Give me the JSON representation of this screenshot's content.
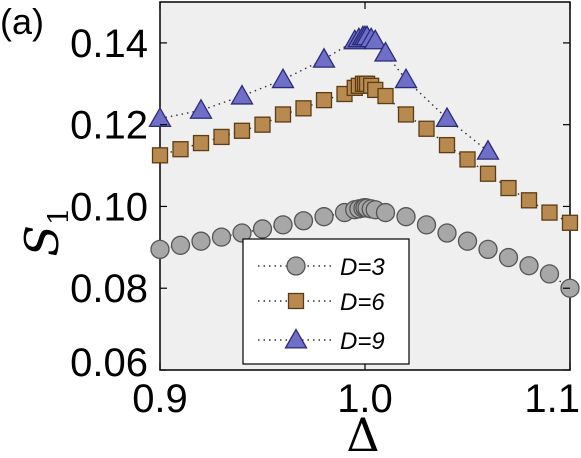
{
  "chart_data": {
    "type": "scatter",
    "panel_label": "(a)",
    "xlabel": "Δ",
    "ylabel": "S",
    "ylabel_sub": "1",
    "xlim": [
      0.9,
      1.1
    ],
    "ylim": [
      0.06,
      0.15
    ],
    "xticks": [
      0.9,
      1.0,
      1.1
    ],
    "xtick_labels": [
      "0.9",
      "1.0",
      "1.1"
    ],
    "yticks": [
      0.06,
      0.08,
      0.1,
      0.12,
      0.14
    ],
    "ytick_labels": [
      "0.06",
      "0.08",
      "0.10",
      "0.12",
      "0.14"
    ],
    "grid": false,
    "legend_position": "bottom-center",
    "series": [
      {
        "name": "D=3",
        "marker": "circle",
        "color": "#a7a7a7",
        "x": [
          0.9,
          0.91,
          0.92,
          0.93,
          0.94,
          0.95,
          0.96,
          0.97,
          0.98,
          0.99,
          0.995,
          0.997,
          0.999,
          1.0,
          1.001,
          1.003,
          1.005,
          1.01,
          1.02,
          1.03,
          1.04,
          1.05,
          1.06,
          1.07,
          1.08,
          1.09,
          1.1
        ],
        "y": [
          0.0895,
          0.0905,
          0.0915,
          0.0925,
          0.0935,
          0.0945,
          0.0955,
          0.0965,
          0.0975,
          0.0985,
          0.0992,
          0.0994,
          0.0996,
          0.0997,
          0.0996,
          0.0994,
          0.0992,
          0.0985,
          0.0975,
          0.0955,
          0.0935,
          0.0915,
          0.0895,
          0.0875,
          0.0855,
          0.0835,
          0.08
        ]
      },
      {
        "name": "D=6",
        "marker": "square",
        "color": "#b88a4f",
        "x": [
          0.9,
          0.91,
          0.92,
          0.93,
          0.94,
          0.95,
          0.96,
          0.97,
          0.98,
          0.99,
          0.995,
          0.997,
          0.999,
          1.0,
          1.001,
          1.003,
          1.005,
          1.01,
          1.02,
          1.03,
          1.04,
          1.05,
          1.06,
          1.07,
          1.08,
          1.09,
          1.1
        ],
        "y": [
          0.1125,
          0.114,
          0.1155,
          0.117,
          0.1185,
          0.12,
          0.1225,
          0.124,
          0.126,
          0.1275,
          0.129,
          0.1295,
          0.13,
          0.13,
          0.13,
          0.1295,
          0.1285,
          0.127,
          0.1225,
          0.119,
          0.115,
          0.1115,
          0.108,
          0.1045,
          0.1015,
          0.0985,
          0.096
        ]
      },
      {
        "name": "D=9",
        "marker": "triangle",
        "color": "#6f6fc8",
        "x": [
          0.9,
          0.92,
          0.94,
          0.96,
          0.98,
          0.995,
          0.997,
          0.999,
          1.0,
          1.001,
          1.003,
          1.005,
          1.01,
          1.02,
          1.04,
          1.06
        ],
        "y": [
          0.1215,
          0.1235,
          0.127,
          0.131,
          0.136,
          0.1405,
          0.141,
          0.1415,
          0.1415,
          0.1415,
          0.141,
          0.1405,
          0.1375,
          0.131,
          0.1215,
          0.1135
        ]
      }
    ]
  }
}
